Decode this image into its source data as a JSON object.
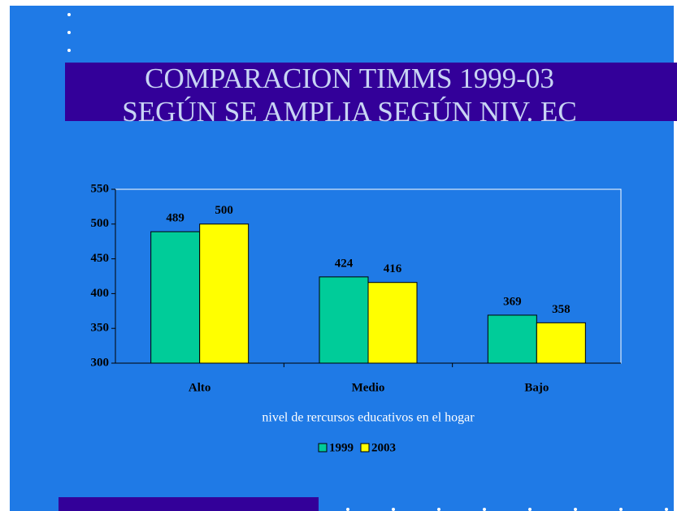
{
  "chart_data": {
    "type": "bar",
    "title": [
      "COMPARACION TIMMS 1999-03",
      "SEGÚN SE AMPLIA SEGÚN NIV. EC"
    ],
    "x_label": "nivel de rercursos educativos en el hogar",
    "categories": [
      "Alto",
      "Medio",
      "Bajo"
    ],
    "series": [
      {
        "name": "1999",
        "color": "#00cc99",
        "values": [
          489,
          424,
          369
        ]
      },
      {
        "name": "2003",
        "color": "#ffff00",
        "values": [
          500,
          416,
          358
        ]
      }
    ],
    "ylim": [
      300,
      550
    ],
    "yticks": [
      300,
      350,
      400,
      450,
      500,
      550
    ],
    "grid": false,
    "legend": "bottom"
  }
}
